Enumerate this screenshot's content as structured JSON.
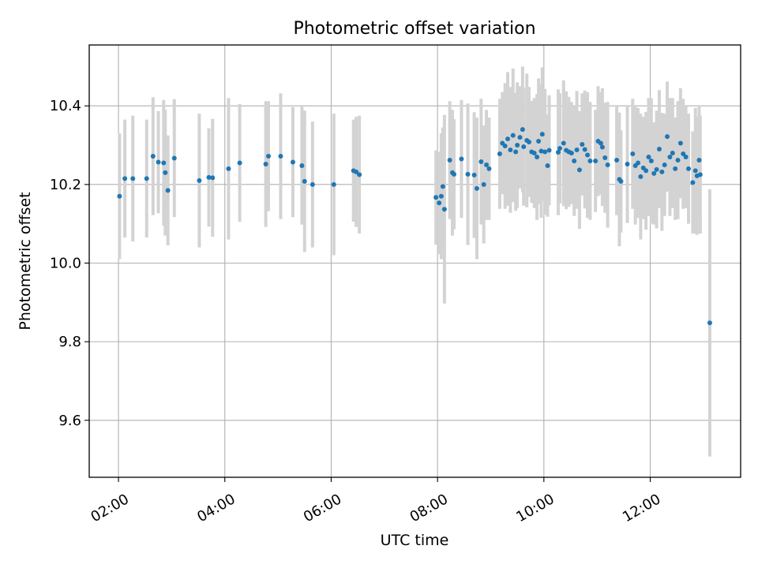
{
  "chart_data": {
    "type": "scatter",
    "title": "Photometric offset variation",
    "xlabel": "UTC time",
    "ylabel": "Photometric offset",
    "xlim_hours": [
      1.45,
      13.7
    ],
    "ylim": [
      9.455,
      10.555
    ],
    "xticks": [
      {
        "hour": 2,
        "label": "02:00"
      },
      {
        "hour": 4,
        "label": "04:00"
      },
      {
        "hour": 6,
        "label": "06:00"
      },
      {
        "hour": 8,
        "label": "08:00"
      },
      {
        "hour": 10,
        "label": "10:00"
      },
      {
        "hour": 12,
        "label": "12:00"
      }
    ],
    "yticks": [
      {
        "value": 9.6,
        "label": "9.6"
      },
      {
        "value": 9.8,
        "label": "9.8"
      },
      {
        "value": 10.0,
        "label": "10.0"
      },
      {
        "value": 10.2,
        "label": "10.2"
      },
      {
        "value": 10.4,
        "label": "10.4"
      }
    ],
    "grid": true,
    "colors": {
      "point": "#1f77b4",
      "errorbar": "#d3d3d3",
      "grid": "#b0b0b0"
    },
    "series": [
      {
        "name": "photometric offset",
        "points": [
          [
            2.02,
            10.17,
            0.16
          ],
          [
            2.12,
            10.215,
            0.15
          ],
          [
            2.27,
            10.215,
            0.16
          ],
          [
            2.53,
            10.215,
            0.15
          ],
          [
            2.65,
            10.272,
            0.15
          ],
          [
            2.75,
            10.257,
            0.13
          ],
          [
            2.85,
            10.255,
            0.16
          ],
          [
            2.88,
            10.23,
            0.16
          ],
          [
            2.93,
            10.185,
            0.14
          ],
          [
            3.05,
            10.267,
            0.15
          ],
          [
            3.52,
            10.21,
            0.17
          ],
          [
            3.7,
            10.218,
            0.125
          ],
          [
            3.77,
            10.217,
            0.15
          ],
          [
            4.07,
            10.24,
            0.18
          ],
          [
            4.28,
            10.255,
            0.15
          ],
          [
            4.77,
            10.252,
            0.16
          ],
          [
            4.82,
            10.272,
            0.14
          ],
          [
            5.05,
            10.272,
            0.16
          ],
          [
            5.28,
            10.257,
            0.14
          ],
          [
            5.45,
            10.248,
            0.15
          ],
          [
            5.5,
            10.208,
            0.18
          ],
          [
            5.65,
            10.2,
            0.16
          ],
          [
            6.05,
            10.2,
            0.18
          ],
          [
            6.42,
            10.235,
            0.13
          ],
          [
            6.47,
            10.232,
            0.14
          ],
          [
            6.53,
            10.225,
            0.15
          ],
          [
            7.97,
            10.167,
            0.12
          ],
          [
            8.03,
            10.153,
            0.13
          ],
          [
            8.07,
            10.17,
            0.16
          ],
          [
            8.1,
            10.195,
            0.15
          ],
          [
            8.13,
            10.137,
            0.24
          ],
          [
            8.23,
            10.262,
            0.15
          ],
          [
            8.28,
            10.23,
            0.16
          ],
          [
            8.31,
            10.226,
            0.14
          ],
          [
            8.45,
            10.265,
            0.15
          ],
          [
            8.57,
            10.226,
            0.18
          ],
          [
            8.69,
            10.224,
            0.16
          ],
          [
            8.74,
            10.19,
            0.18
          ],
          [
            8.82,
            10.258,
            0.16
          ],
          [
            8.87,
            10.2,
            0.15
          ],
          [
            8.92,
            10.25,
            0.14
          ],
          [
            8.97,
            10.24,
            0.13
          ],
          [
            9.17,
            10.278,
            0.14
          ],
          [
            9.22,
            10.305,
            0.13
          ],
          [
            9.27,
            10.298,
            0.16
          ],
          [
            9.32,
            10.316,
            0.17
          ],
          [
            9.37,
            10.288,
            0.16
          ],
          [
            9.42,
            10.325,
            0.17
          ],
          [
            9.47,
            10.283,
            0.15
          ],
          [
            9.5,
            10.3,
            0.16
          ],
          [
            9.55,
            10.32,
            0.13
          ],
          [
            9.6,
            10.34,
            0.16
          ],
          [
            9.62,
            10.296,
            0.15
          ],
          [
            9.68,
            10.312,
            0.17
          ],
          [
            9.72,
            10.308,
            0.14
          ],
          [
            9.77,
            10.283,
            0.13
          ],
          [
            9.82,
            10.28,
            0.14
          ],
          [
            9.87,
            10.27,
            0.16
          ],
          [
            9.9,
            10.31,
            0.16
          ],
          [
            9.95,
            10.285,
            0.17
          ],
          [
            9.97,
            10.328,
            0.17
          ],
          [
            10.02,
            10.283,
            0.16
          ],
          [
            10.07,
            10.248,
            0.13
          ],
          [
            10.1,
            10.287,
            0.14
          ],
          [
            10.27,
            10.282,
            0.16
          ],
          [
            10.3,
            10.292,
            0.14
          ],
          [
            10.37,
            10.305,
            0.16
          ],
          [
            10.42,
            10.287,
            0.15
          ],
          [
            10.47,
            10.283,
            0.14
          ],
          [
            10.52,
            10.28,
            0.13
          ],
          [
            10.57,
            10.26,
            0.14
          ],
          [
            10.62,
            10.288,
            0.15
          ],
          [
            10.67,
            10.237,
            0.15
          ],
          [
            10.72,
            10.302,
            0.13
          ],
          [
            10.77,
            10.289,
            0.15
          ],
          [
            10.82,
            10.275,
            0.16
          ],
          [
            10.87,
            10.26,
            0.15
          ],
          [
            10.97,
            10.26,
            0.13
          ],
          [
            11.02,
            10.31,
            0.14
          ],
          [
            11.07,
            10.305,
            0.13
          ],
          [
            11.1,
            10.295,
            0.15
          ],
          [
            11.15,
            10.268,
            0.14
          ],
          [
            11.2,
            10.25,
            0.16
          ],
          [
            11.37,
            10.262,
            0.14
          ],
          [
            11.42,
            10.213,
            0.17
          ],
          [
            11.45,
            10.208,
            0.13
          ],
          [
            11.57,
            10.252,
            0.15
          ],
          [
            11.67,
            10.278,
            0.14
          ],
          [
            11.72,
            10.248,
            0.15
          ],
          [
            11.77,
            10.255,
            0.14
          ],
          [
            11.82,
            10.22,
            0.16
          ],
          [
            11.87,
            10.242,
            0.13
          ],
          [
            11.92,
            10.235,
            0.15
          ],
          [
            11.97,
            10.27,
            0.15
          ],
          [
            12.02,
            10.26,
            0.16
          ],
          [
            12.07,
            10.228,
            0.13
          ],
          [
            12.12,
            10.238,
            0.15
          ],
          [
            12.17,
            10.29,
            0.15
          ],
          [
            12.22,
            10.232,
            0.15
          ],
          [
            12.27,
            10.25,
            0.13
          ],
          [
            12.32,
            10.322,
            0.14
          ],
          [
            12.37,
            10.27,
            0.15
          ],
          [
            12.42,
            10.28,
            0.14
          ],
          [
            12.47,
            10.24,
            0.13
          ],
          [
            12.52,
            10.262,
            0.15
          ],
          [
            12.57,
            10.305,
            0.14
          ],
          [
            12.62,
            10.278,
            0.14
          ],
          [
            12.67,
            10.27,
            0.13
          ],
          [
            12.72,
            10.24,
            0.14
          ],
          [
            12.8,
            10.205,
            0.13
          ],
          [
            12.85,
            10.235,
            0.16
          ],
          [
            12.88,
            10.222,
            0.15
          ],
          [
            12.92,
            10.262,
            0.14
          ],
          [
            12.94,
            10.225,
            0.15
          ],
          [
            13.12,
            9.848,
            0.34
          ]
        ]
      }
    ]
  }
}
